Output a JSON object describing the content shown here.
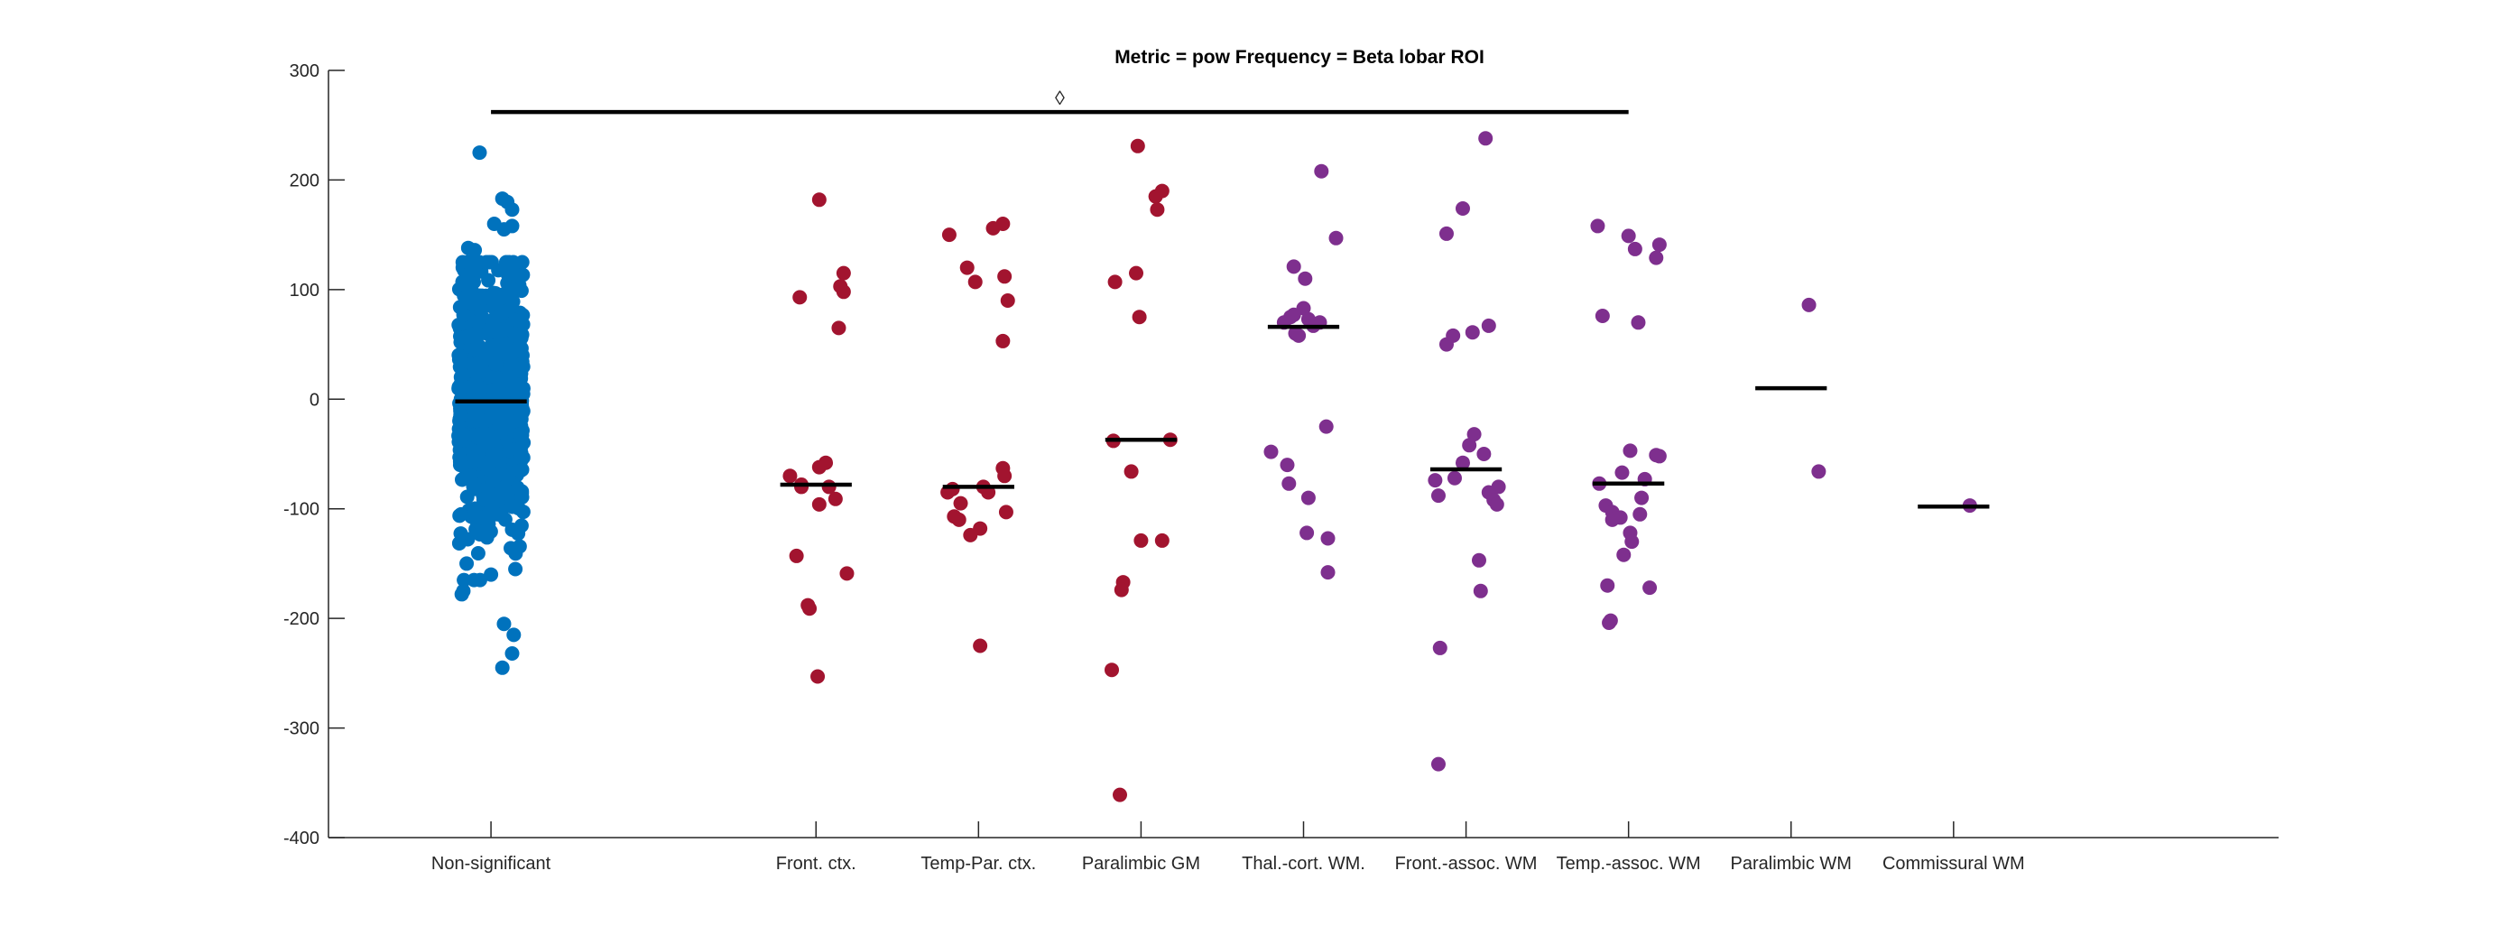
{
  "chart_data": {
    "type": "scatter",
    "subtype": "jitter-strip",
    "title": "Metric = pow Frequency = Beta lobar ROI",
    "xlabel": "",
    "ylabel": "",
    "ylim": [
      -400,
      300
    ],
    "yticks": [
      300,
      200,
      100,
      0,
      -100,
      -200,
      -300,
      -400
    ],
    "ytick_labels": [
      "300",
      "200",
      "100",
      "0",
      "-100",
      "-200",
      "-300",
      "-400"
    ],
    "xlim": [
      0,
      12
    ],
    "grid": false,
    "categories": [
      {
        "label": "Non-significant",
        "x": 1
      },
      {
        "label": "Front. ctx.",
        "x": 3
      },
      {
        "label": "Temp-Par. ctx.",
        "x": 4
      },
      {
        "label": "Paralimbic GM",
        "x": 5
      },
      {
        "label": "Thal.-cort. WM.",
        "x": 6
      },
      {
        "label": "Front.-assoc. WM",
        "x": 7
      },
      {
        "label": "Temp.-assoc. WM",
        "x": 8
      },
      {
        "label": "Paralimbic WM",
        "x": 9
      },
      {
        "label": "Commissural WM",
        "x": 10
      }
    ],
    "colors": {
      "nonsignificant": "#0072BD",
      "cortex": "#A2142F",
      "whitematter": "#7E2F8E",
      "median": "#000000",
      "bracket": "#000000"
    },
    "significance_bracket": {
      "from_x": 1,
      "to_x": 8,
      "y": 262,
      "marker": "◊"
    },
    "series": [
      {
        "category": "Non-significant",
        "x": 1,
        "color": "#0072BD",
        "median": -2,
        "dense_points": 900,
        "points": [
          {
            "dx": -0.07,
            "y": 225
          },
          {
            "dx": 0.07,
            "y": 183
          },
          {
            "dx": 0.1,
            "y": 180
          },
          {
            "dx": 0.13,
            "y": 173
          },
          {
            "dx": 0.02,
            "y": 160
          },
          {
            "dx": 0.08,
            "y": 155
          },
          {
            "dx": 0.13,
            "y": 158
          },
          {
            "dx": -0.14,
            "y": 138
          },
          {
            "dx": -0.1,
            "y": 136
          },
          {
            "dx": -0.18,
            "y": -178
          },
          {
            "dx": -0.17,
            "y": -175
          },
          {
            "dx": 0.08,
            "y": -205
          },
          {
            "dx": 0.14,
            "y": -215
          },
          {
            "dx": 0.13,
            "y": -232
          },
          {
            "dx": 0.07,
            "y": -245
          },
          {
            "dx": -0.15,
            "y": -150
          },
          {
            "dx": 0.15,
            "y": -155
          },
          {
            "dx": 0.0,
            "y": -160
          },
          {
            "dx": -0.12,
            "y": 118
          },
          {
            "dx": 0.12,
            "y": 115
          }
        ]
      },
      {
        "category": "Front. ctx.",
        "x": 3,
        "color": "#A2142F",
        "median": -78,
        "points": [
          {
            "dx": 0.02,
            "y": 182
          },
          {
            "dx": 0.17,
            "y": 115
          },
          {
            "dx": 0.15,
            "y": 103
          },
          {
            "dx": 0.17,
            "y": 98
          },
          {
            "dx": -0.1,
            "y": 93
          },
          {
            "dx": 0.14,
            "y": 65
          },
          {
            "dx": 0.06,
            "y": -58
          },
          {
            "dx": 0.02,
            "y": -62
          },
          {
            "dx": -0.16,
            "y": -70
          },
          {
            "dx": -0.09,
            "y": -78
          },
          {
            "dx": -0.09,
            "y": -80
          },
          {
            "dx": 0.08,
            "y": -80
          },
          {
            "dx": 0.12,
            "y": -91
          },
          {
            "dx": 0.02,
            "y": -96
          },
          {
            "dx": -0.12,
            "y": -143
          },
          {
            "dx": 0.19,
            "y": -159
          },
          {
            "dx": -0.05,
            "y": -188
          },
          {
            "dx": -0.04,
            "y": -191
          },
          {
            "dx": 0.01,
            "y": -253
          }
        ]
      },
      {
        "category": "Temp-Par. ctx.",
        "x": 4,
        "color": "#A2142F",
        "median": -80,
        "points": [
          {
            "dx": 0.15,
            "y": 160
          },
          {
            "dx": 0.09,
            "y": 156
          },
          {
            "dx": -0.18,
            "y": 150
          },
          {
            "dx": -0.07,
            "y": 120
          },
          {
            "dx": 0.16,
            "y": 112
          },
          {
            "dx": -0.02,
            "y": 107
          },
          {
            "dx": 0.18,
            "y": 90
          },
          {
            "dx": 0.15,
            "y": 53
          },
          {
            "dx": 0.15,
            "y": -63
          },
          {
            "dx": 0.16,
            "y": -70
          },
          {
            "dx": 0.03,
            "y": -80
          },
          {
            "dx": -0.16,
            "y": -82
          },
          {
            "dx": -0.19,
            "y": -85
          },
          {
            "dx": 0.06,
            "y": -85
          },
          {
            "dx": -0.11,
            "y": -95
          },
          {
            "dx": 0.17,
            "y": -103
          },
          {
            "dx": -0.15,
            "y": -107
          },
          {
            "dx": -0.12,
            "y": -110
          },
          {
            "dx": 0.01,
            "y": -118
          },
          {
            "dx": -0.05,
            "y": -124
          },
          {
            "dx": 0.01,
            "y": -225
          }
        ]
      },
      {
        "category": "Paralimbic GM",
        "x": 5,
        "color": "#A2142F",
        "median": -37,
        "points": [
          {
            "dx": -0.02,
            "y": 231
          },
          {
            "dx": 0.13,
            "y": 190
          },
          {
            "dx": 0.09,
            "y": 185
          },
          {
            "dx": 0.1,
            "y": 173
          },
          {
            "dx": -0.03,
            "y": 115
          },
          {
            "dx": -0.16,
            "y": 107
          },
          {
            "dx": -0.01,
            "y": 75
          },
          {
            "dx": -0.17,
            "y": -38
          },
          {
            "dx": 0.18,
            "y": -37
          },
          {
            "dx": -0.06,
            "y": -66
          },
          {
            "dx": 0.0,
            "y": -129
          },
          {
            "dx": 0.13,
            "y": -129
          },
          {
            "dx": -0.11,
            "y": -167
          },
          {
            "dx": -0.12,
            "y": -174
          },
          {
            "dx": -0.18,
            "y": -247
          },
          {
            "dx": -0.13,
            "y": -361
          }
        ]
      },
      {
        "category": "Thal.-cort. WM.",
        "x": 6,
        "color": "#7E2F8E",
        "median": 66,
        "points": [
          {
            "dx": 0.11,
            "y": 208
          },
          {
            "dx": 0.2,
            "y": 147
          },
          {
            "dx": -0.06,
            "y": 121
          },
          {
            "dx": 0.01,
            "y": 110
          },
          {
            "dx": 0.0,
            "y": 83
          },
          {
            "dx": -0.08,
            "y": 75
          },
          {
            "dx": -0.06,
            "y": 77
          },
          {
            "dx": 0.03,
            "y": 73
          },
          {
            "dx": 0.1,
            "y": 70
          },
          {
            "dx": -0.12,
            "y": 70
          },
          {
            "dx": 0.06,
            "y": 67
          },
          {
            "dx": -0.05,
            "y": 60
          },
          {
            "dx": -0.03,
            "y": 58
          },
          {
            "dx": -0.2,
            "y": -48
          },
          {
            "dx": 0.14,
            "y": -25
          },
          {
            "dx": -0.1,
            "y": -60
          },
          {
            "dx": -0.09,
            "y": -77
          },
          {
            "dx": 0.03,
            "y": -90
          },
          {
            "dx": 0.15,
            "y": -127
          },
          {
            "dx": 0.02,
            "y": -122
          },
          {
            "dx": 0.15,
            "y": -158
          }
        ]
      },
      {
        "category": "Front.-assoc. WM",
        "x": 7,
        "color": "#7E2F8E",
        "median": -64,
        "points": [
          {
            "dx": 0.12,
            "y": 238
          },
          {
            "dx": -0.02,
            "y": 174
          },
          {
            "dx": -0.12,
            "y": 151
          },
          {
            "dx": 0.14,
            "y": 67
          },
          {
            "dx": 0.04,
            "y": 61
          },
          {
            "dx": -0.08,
            "y": 58
          },
          {
            "dx": -0.12,
            "y": 50
          },
          {
            "dx": 0.05,
            "y": -32
          },
          {
            "dx": 0.02,
            "y": -42
          },
          {
            "dx": 0.11,
            "y": -50
          },
          {
            "dx": -0.02,
            "y": -58
          },
          {
            "dx": -0.07,
            "y": -72
          },
          {
            "dx": -0.19,
            "y": -74
          },
          {
            "dx": 0.2,
            "y": -80
          },
          {
            "dx": 0.14,
            "y": -85
          },
          {
            "dx": 0.17,
            "y": -92
          },
          {
            "dx": 0.19,
            "y": -96
          },
          {
            "dx": -0.17,
            "y": -88
          },
          {
            "dx": 0.08,
            "y": -147
          },
          {
            "dx": 0.09,
            "y": -175
          },
          {
            "dx": -0.16,
            "y": -227
          },
          {
            "dx": -0.17,
            "y": -333
          }
        ]
      },
      {
        "category": "Temp.-assoc. WM",
        "x": 8,
        "color": "#7E2F8E",
        "median": -77,
        "points": [
          {
            "dx": -0.19,
            "y": 158
          },
          {
            "dx": 0.0,
            "y": 149
          },
          {
            "dx": 0.04,
            "y": 137
          },
          {
            "dx": 0.19,
            "y": 141
          },
          {
            "dx": 0.17,
            "y": 129
          },
          {
            "dx": -0.16,
            "y": 76
          },
          {
            "dx": 0.06,
            "y": 70
          },
          {
            "dx": 0.01,
            "y": -47
          },
          {
            "dx": 0.17,
            "y": -51
          },
          {
            "dx": 0.19,
            "y": -52
          },
          {
            "dx": -0.18,
            "y": -77
          },
          {
            "dx": 0.1,
            "y": -73
          },
          {
            "dx": -0.04,
            "y": -67
          },
          {
            "dx": -0.14,
            "y": -97
          },
          {
            "dx": -0.1,
            "y": -103
          },
          {
            "dx": -0.1,
            "y": -110
          },
          {
            "dx": 0.08,
            "y": -90
          },
          {
            "dx": -0.05,
            "y": -108
          },
          {
            "dx": 0.01,
            "y": -122
          },
          {
            "dx": 0.02,
            "y": -130
          },
          {
            "dx": -0.03,
            "y": -142
          },
          {
            "dx": 0.07,
            "y": -105
          },
          {
            "dx": -0.13,
            "y": -170
          },
          {
            "dx": 0.13,
            "y": -172
          },
          {
            "dx": -0.12,
            "y": -204
          },
          {
            "dx": -0.11,
            "y": -202
          }
        ]
      },
      {
        "category": "Paralimbic WM",
        "x": 9,
        "color": "#7E2F8E",
        "median": 10,
        "points": [
          {
            "dx": 0.11,
            "y": 86
          },
          {
            "dx": 0.17,
            "y": -66
          }
        ]
      },
      {
        "category": "Commissural WM",
        "x": 10,
        "color": "#7E2F8E",
        "median": -98,
        "points": [
          {
            "dx": 0.1,
            "y": -97
          }
        ]
      }
    ]
  }
}
